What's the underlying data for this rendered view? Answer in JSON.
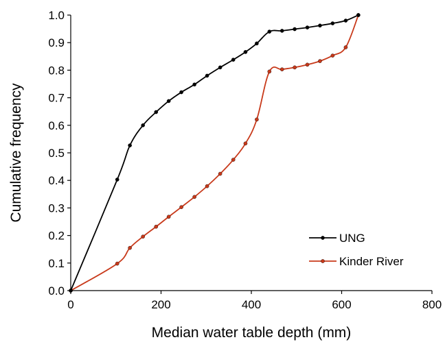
{
  "chart_data": {
    "type": "line",
    "title": "",
    "xlabel": "Median water table depth (mm)",
    "ylabel": "Cumulative frequency",
    "xlim": [
      0,
      800
    ],
    "ylim": [
      0,
      1.0
    ],
    "x_ticks": [
      "0",
      "200",
      "400",
      "600",
      "800"
    ],
    "y_ticks": [
      "0.0",
      "0.1",
      "0.2",
      "0.3",
      "0.4",
      "0.5",
      "0.6",
      "0.7",
      "0.8",
      "0.9",
      "1.0"
    ],
    "grid": false,
    "legend": "bottom-right",
    "series": [
      {
        "name": "UNG",
        "color": "#000000",
        "x": [
          0,
          103,
          131,
          160,
          189,
          217,
          245,
          274,
          302,
          331,
          360,
          387,
          412,
          440,
          468,
          496,
          524,
          552,
          580,
          609,
          637
        ],
        "y": [
          0.0,
          0.403,
          0.527,
          0.6,
          0.648,
          0.688,
          0.72,
          0.748,
          0.78,
          0.81,
          0.838,
          0.866,
          0.897,
          0.94,
          0.943,
          0.949,
          0.955,
          0.962,
          0.97,
          0.98,
          1.0
        ]
      },
      {
        "name": "Kinder River",
        "color": "#c8391a",
        "x": [
          0,
          103,
          131,
          160,
          189,
          217,
          245,
          274,
          302,
          331,
          360,
          387,
          412,
          440,
          468,
          496,
          524,
          552,
          580,
          609,
          637
        ],
        "y": [
          0.0,
          0.098,
          0.155,
          0.196,
          0.232,
          0.268,
          0.303,
          0.34,
          0.379,
          0.424,
          0.475,
          0.534,
          0.621,
          0.795,
          0.803,
          0.81,
          0.82,
          0.833,
          0.853,
          0.883,
          1.0
        ]
      }
    ]
  }
}
